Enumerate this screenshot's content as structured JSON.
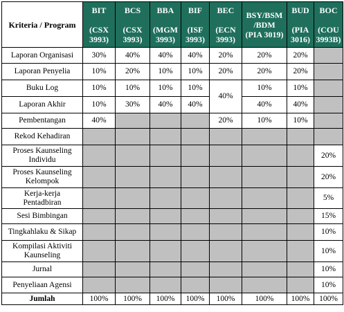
{
  "header": {
    "criteria_label": "Kriteria / Program",
    "programs": [
      {
        "name": "BIT",
        "code": "(CSX 3993)"
      },
      {
        "name": "BCS",
        "code": "(CSX 3993)"
      },
      {
        "name": "BBA",
        "code": "(MGM 3993)"
      },
      {
        "name": "BIF",
        "code": "(ISF 3993)"
      },
      {
        "name": "BEC",
        "code": "(ECN 3993)"
      },
      {
        "name": "BSY/BSM /BDM",
        "code": "(PIA 3019)"
      },
      {
        "name": "BUD",
        "code": "(PIA 3016)"
      },
      {
        "name": "BOC",
        "code": "(COU 3993B)"
      }
    ]
  },
  "rows": {
    "laporan_organisasi": {
      "label": "Laporan Organisasi",
      "values": [
        "30%",
        "40%",
        "40%",
        "40%",
        "20%",
        "20%",
        "20%"
      ]
    },
    "laporan_penyelia": {
      "label": "Laporan Penyelia",
      "values": [
        "10%",
        "20%",
        "10%",
        "10%",
        "20%",
        "20%",
        "20%"
      ]
    },
    "buku_log": {
      "label": "Buku Log",
      "values": [
        "10%",
        "10%",
        "10%",
        "10%",
        "10%",
        "10%"
      ]
    },
    "bec_merged": "40%",
    "laporan_akhir": {
      "label": "Laporan Akhir",
      "values": [
        "10%",
        "30%",
        "40%",
        "40%",
        "40%",
        "40%"
      ]
    },
    "pembentangan": {
      "label": "Pembentangan",
      "values": [
        "40%",
        "20%",
        "10%",
        "10%"
      ]
    },
    "rekod_kehadiran": {
      "label": "Rekod Kehadiran"
    },
    "proses_individu": {
      "label": "Proses Kaunseling Individu",
      "value": "20%"
    },
    "proses_kelompok": {
      "label": "Proses Kaunseling Kelompok",
      "value": "20%"
    },
    "kerja_pentadbiran": {
      "label": "Kerja-kerja Pentadbiran",
      "value": "5%"
    },
    "sesi_bimbingan": {
      "label": "Sesi Bimbingan",
      "value": "15%"
    },
    "tingkahlaku": {
      "label": "Tingkahlaku & Sikap",
      "value": "10%"
    },
    "kompilasi": {
      "label": "Kompilasi Aktiviti Kaunseling",
      "value": "10%"
    },
    "jurnal": {
      "label": "Jurnal",
      "value": "10%"
    },
    "penyeliaan_agensi": {
      "label": "Penyeliaan Agensi",
      "value": "10%"
    },
    "jumlah": {
      "label": "Jumlah",
      "values": [
        "100%",
        "100%",
        "100%",
        "100%",
        "100%",
        "100%",
        "100%",
        "100%"
      ]
    }
  },
  "colors": {
    "header_bg": "#1f6f5c",
    "header_text": "#ffffff",
    "grey_cell": "#c0c0c0"
  }
}
